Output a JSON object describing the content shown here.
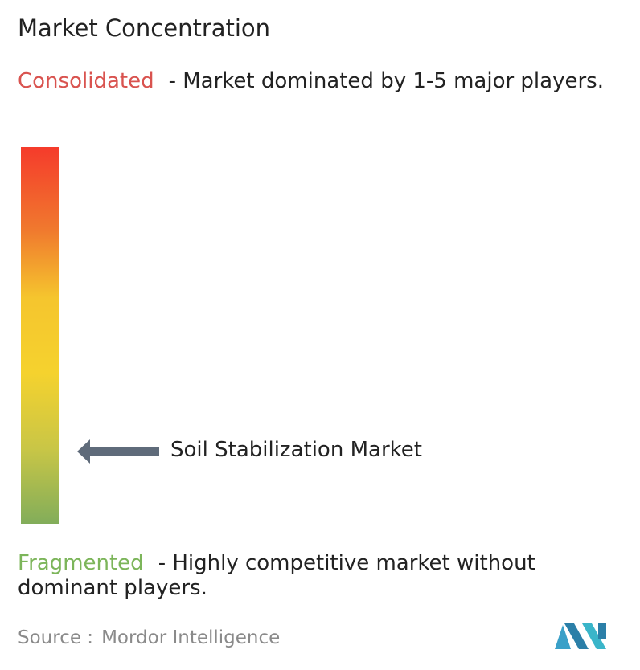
{
  "header": {
    "title": "Market Concentration"
  },
  "consolidated": {
    "label": "Consolidated",
    "description": "- Market dominated by 1-5 major players."
  },
  "marker": {
    "label": "Soil Stabilization Market"
  },
  "fragmented": {
    "label": "Fragmented",
    "description": "- Highly competitive market without dominant players."
  },
  "source": {
    "label": "Source :",
    "name": "Mordor Intelligence"
  }
}
